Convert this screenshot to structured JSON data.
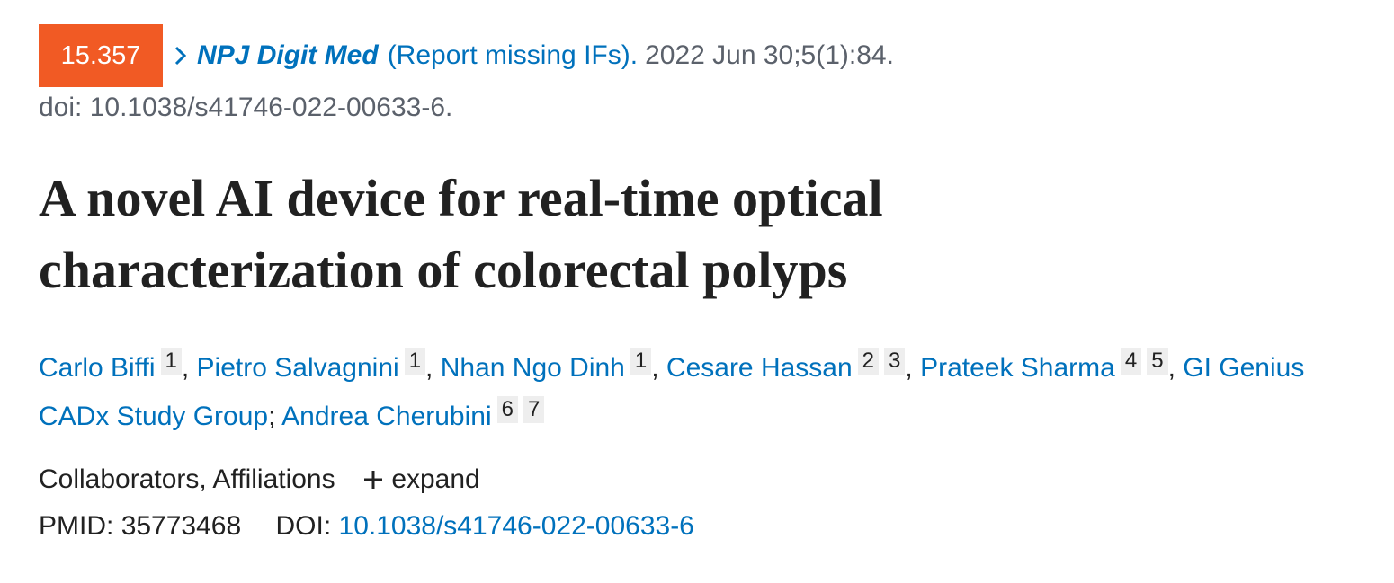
{
  "citation": {
    "impact_factor": "15.357",
    "journal": "NPJ Digit Med",
    "report_link": "(Report missing IFs).",
    "date": "2022 Jun 30;5(1):84.",
    "doi_line": "doi: 10.1038/s41746-022-00633-6."
  },
  "title": "A novel AI device for real-time optical characterization of colorectal polyps",
  "authors": [
    {
      "name": "Carlo Biffi",
      "affiliations": [
        "1"
      ],
      "separator": ","
    },
    {
      "name": "Pietro Salvagnini",
      "affiliations": [
        "1"
      ],
      "separator": ","
    },
    {
      "name": "Nhan Ngo Dinh",
      "affiliations": [
        "1"
      ],
      "separator": ","
    },
    {
      "name": "Cesare Hassan",
      "affiliations": [
        "2",
        "3"
      ],
      "separator": ","
    },
    {
      "name": "Prateek Sharma",
      "affiliations": [
        "4",
        "5"
      ],
      "separator": ","
    },
    {
      "name": "GI Genius CADx Study Group",
      "affiliations": [],
      "separator": ";"
    },
    {
      "name": "Andrea Cherubini",
      "affiliations": [
        "6",
        "7"
      ]
    }
  ],
  "expand": {
    "label": "Collaborators, Affiliations",
    "button": "expand"
  },
  "identifiers": {
    "pmid_label": "PMID:",
    "pmid": "35773468",
    "doi_label": "DOI:",
    "doi": "10.1038/s41746-022-00633-6"
  }
}
